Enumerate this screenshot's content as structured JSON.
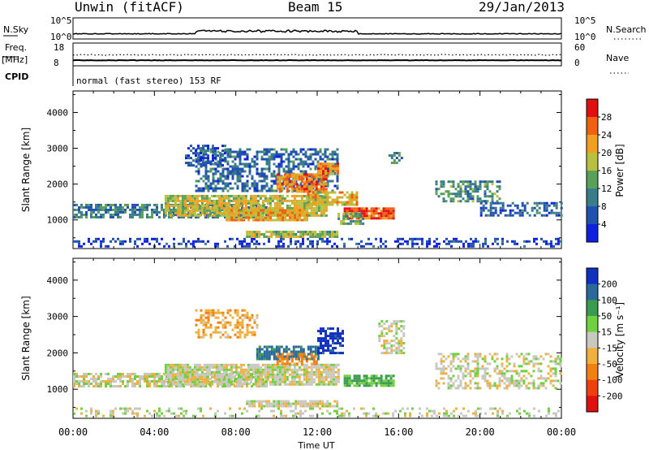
{
  "header": {
    "station": "Unwin (fitACF)",
    "beam": "Beam 15",
    "date": "29/Jan/2013"
  },
  "summary": {
    "nsky_label": "N.Sky",
    "nsky_ticks": [
      "10^5",
      "10^0"
    ],
    "nsearch_label": "N.Search",
    "freq_label_1": "Freq.",
    "freq_label_2": "[MHz]",
    "freq_ticks": [
      "18",
      "8"
    ],
    "nave_label": "Nave",
    "nave_ticks": [
      "60",
      "0"
    ],
    "cpid_label": "CPID",
    "cpid_text": "normal (fast stereo) 153 RF"
  },
  "chart_data": [
    {
      "type": "heatmap",
      "name": "power",
      "ylabel": "Slant Range [km]",
      "xlabel": "Time UT",
      "ylim": [
        200,
        4600
      ],
      "y_ticks": [
        1000,
        2000,
        3000,
        4000
      ],
      "x_ticks": [
        "00:00",
        "04:00",
        "08:00",
        "12:00",
        "16:00",
        "20:00",
        "00:00"
      ],
      "xlim_hours": [
        0,
        24
      ],
      "colorbar": {
        "label": "Power [dB]",
        "ticks": [
          "4",
          "8",
          "12",
          "16",
          "20",
          "24",
          "28"
        ],
        "colors": [
          "#1020e0",
          "#2050b0",
          "#3a7d8a",
          "#5aa05a",
          "#b8c040",
          "#f0a020",
          "#f06010",
          "#e01010"
        ]
      },
      "regions": [
        {
          "t": [
            0.0,
            24.0
          ],
          "r": [
            250,
            500
          ],
          "v": 4,
          "d": 0.35
        },
        {
          "t": [
            0.0,
            9.5
          ],
          "r": [
            1050,
            1450
          ],
          "v": 10,
          "d": 0.7
        },
        {
          "t": [
            4.5,
            12.5
          ],
          "r": [
            1150,
            1700
          ],
          "v": 18,
          "d": 0.85
        },
        {
          "t": [
            7.5,
            11.5
          ],
          "r": [
            1000,
            1300
          ],
          "v": 22,
          "d": 0.9
        },
        {
          "t": [
            6.0,
            13.0
          ],
          "r": [
            1800,
            3000
          ],
          "v": 8,
          "d": 0.55
        },
        {
          "t": [
            5.5,
            7.5
          ],
          "r": [
            2500,
            3100
          ],
          "v": 6,
          "d": 0.5
        },
        {
          "t": [
            10.0,
            12.5
          ],
          "r": [
            1800,
            2300
          ],
          "v": 24,
          "d": 0.85
        },
        {
          "t": [
            12.0,
            13.0
          ],
          "r": [
            2300,
            2600
          ],
          "v": 24,
          "d": 0.8
        },
        {
          "t": [
            11.5,
            14.0
          ],
          "r": [
            1400,
            1800
          ],
          "v": 20,
          "d": 0.8
        },
        {
          "t": [
            13.3,
            15.8
          ],
          "r": [
            1050,
            1350
          ],
          "v": 28,
          "d": 0.9
        },
        {
          "t": [
            13.0,
            14.2
          ],
          "r": [
            900,
            1200
          ],
          "v": 14,
          "d": 0.7
        },
        {
          "t": [
            8.5,
            13.0
          ],
          "r": [
            550,
            700
          ],
          "v": 16,
          "d": 0.85
        },
        {
          "t": [
            15.5,
            16.2
          ],
          "r": [
            2600,
            2900
          ],
          "v": 10,
          "d": 0.6
        },
        {
          "t": [
            17.8,
            21.0
          ],
          "r": [
            1500,
            2100
          ],
          "v": 12,
          "d": 0.55
        },
        {
          "t": [
            20.0,
            24.0
          ],
          "r": [
            1100,
            1500
          ],
          "v": 8,
          "d": 0.5
        }
      ]
    },
    {
      "type": "heatmap",
      "name": "velocity",
      "ylabel": "Slant Range [km]",
      "xlabel": "Time UT",
      "ylim": [
        200,
        4600
      ],
      "y_ticks": [
        1000,
        2000,
        3000,
        4000
      ],
      "x_ticks": [
        "00:00",
        "04:00",
        "08:00",
        "12:00",
        "16:00",
        "20:00",
        "00:00"
      ],
      "xlim_hours": [
        0,
        24
      ],
      "colorbar": {
        "label": "Velocity [m s⁻¹]",
        "ticks": [
          "200",
          "100",
          "50",
          "15",
          "-15",
          "-50",
          "-100",
          "-200"
        ],
        "colors": [
          "#1030c0",
          "#2a6a9a",
          "#3a9a50",
          "#70d040",
          "#c8c8c0",
          "#f0b040",
          "#f08010",
          "#f04010",
          "#e01010"
        ]
      },
      "regions": [
        {
          "t": [
            0.0,
            24.0
          ],
          "r": [
            250,
            500
          ],
          "v": 0,
          "d": 0.3
        },
        {
          "t": [
            0.0,
            9.5
          ],
          "r": [
            1050,
            1450
          ],
          "v": 0,
          "d": 0.7
        },
        {
          "t": [
            4.5,
            13.0
          ],
          "r": [
            1150,
            1700
          ],
          "v": 0,
          "d": 0.85
        },
        {
          "t": [
            6.0,
            9.0
          ],
          "r": [
            2400,
            3200
          ],
          "v": -40,
          "d": 0.5
        },
        {
          "t": [
            9.0,
            12.0
          ],
          "r": [
            1800,
            2200
          ],
          "v": 120,
          "d": 0.75
        },
        {
          "t": [
            12.0,
            13.2
          ],
          "r": [
            2000,
            2700
          ],
          "v": 220,
          "d": 0.7
        },
        {
          "t": [
            10.0,
            12.0
          ],
          "r": [
            1700,
            2000
          ],
          "v": -60,
          "d": 0.6
        },
        {
          "t": [
            13.3,
            15.8
          ],
          "r": [
            1100,
            1400
          ],
          "v": 60,
          "d": 0.85
        },
        {
          "t": [
            8.5,
            13.0
          ],
          "r": [
            550,
            700
          ],
          "v": 0,
          "d": 0.85
        },
        {
          "t": [
            15.0,
            16.2
          ],
          "r": [
            2000,
            2900
          ],
          "v": 0,
          "d": 0.55
        },
        {
          "t": [
            17.8,
            24.0
          ],
          "r": [
            1000,
            2000
          ],
          "v": 0,
          "d": 0.45
        }
      ]
    }
  ]
}
